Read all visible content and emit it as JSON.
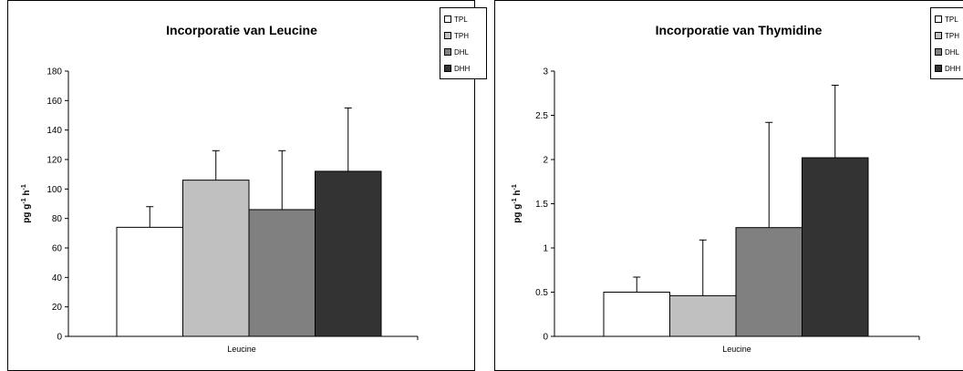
{
  "chart_data": [
    {
      "type": "bar",
      "title": "Incorporatie van Leucine",
      "xlabel": "",
      "ylabel": "pg g-1 h-1",
      "ylabel_main": "pg g",
      "ylabel_sup1": "-1",
      "ylabel_mid": " h",
      "ylabel_sup2": "-1",
      "categories": [
        "Leucine"
      ],
      "ylim": [
        0,
        180
      ],
      "yticks": [
        0,
        20,
        40,
        60,
        80,
        100,
        120,
        140,
        160,
        180
      ],
      "ytick_labels": [
        "0",
        "20",
        "40",
        "60",
        "80",
        "100",
        "120",
        "140",
        "160",
        "180"
      ],
      "series": [
        {
          "name": "TPL",
          "values": [
            74
          ],
          "error": [
            14
          ],
          "color": "#ffffff"
        },
        {
          "name": "TPH",
          "values": [
            106
          ],
          "error": [
            20
          ],
          "color": "#c0c0c0"
        },
        {
          "name": "DHL",
          "values": [
            86
          ],
          "error": [
            40
          ],
          "color": "#808080"
        },
        {
          "name": "DHH",
          "values": [
            112
          ],
          "error": [
            43
          ],
          "color": "#333333"
        }
      ],
      "legend_position": "top-right",
      "grid": false
    },
    {
      "type": "bar",
      "title": "Incorporatie van Thymidine",
      "xlabel": "",
      "ylabel": "pg g-1 h-1",
      "ylabel_main": "pg g",
      "ylabel_sup1": "-1",
      "ylabel_mid": " h",
      "ylabel_sup2": "-1",
      "categories": [
        "Leucine"
      ],
      "ylim": [
        0,
        3
      ],
      "yticks": [
        0,
        0.5,
        1,
        1.5,
        2,
        2.5,
        3
      ],
      "ytick_labels": [
        "0",
        "0.5",
        "1",
        "1.5",
        "2",
        "2.5",
        "3"
      ],
      "series": [
        {
          "name": "TPL",
          "values": [
            0.5
          ],
          "error": [
            0.17
          ],
          "color": "#ffffff"
        },
        {
          "name": "TPH",
          "values": [
            0.46
          ],
          "error": [
            0.63
          ],
          "color": "#c0c0c0"
        },
        {
          "name": "DHL",
          "values": [
            1.23
          ],
          "error": [
            1.19
          ],
          "color": "#808080"
        },
        {
          "name": "DHH",
          "values": [
            2.02
          ],
          "error": [
            0.82
          ],
          "color": "#333333"
        }
      ],
      "legend_position": "top-right",
      "grid": false
    }
  ]
}
